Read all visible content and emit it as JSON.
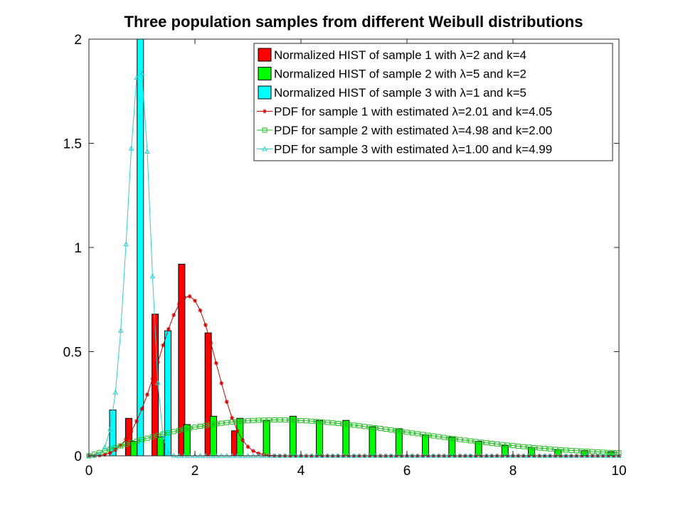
{
  "chart_data": {
    "type": "bar",
    "title": "Three population samples from different Weibull distributions",
    "xlabel": "",
    "ylabel": "",
    "xlim": [
      0,
      10
    ],
    "ylim": [
      0,
      2
    ],
    "xticks": [
      "0",
      "2",
      "4",
      "6",
      "8",
      "10"
    ],
    "yticks": [
      "0",
      "0.5",
      "1",
      "1.5",
      "2"
    ],
    "grid": false,
    "legend_position": "top-right",
    "histograms": [
      {
        "name": "Normalized HIST of sample 1 with λ=2 and k=4",
        "color": "#ff0000",
        "x": [
          0.75,
          1.25,
          1.75,
          2.25,
          2.75
        ],
        "values": [
          0.18,
          0.68,
          0.92,
          0.59,
          0.12
        ]
      },
      {
        "name": "Normalized HIST of sample 2 with λ=5 and k=2",
        "color": "#00ff00",
        "x": [
          0.85,
          1.35,
          1.85,
          2.35,
          2.85,
          3.35,
          3.85,
          4.35,
          4.85,
          5.35,
          5.85,
          6.35,
          6.85,
          7.35,
          7.85,
          8.35,
          8.85,
          9.35,
          9.85
        ],
        "values": [
          0.07,
          0.09,
          0.15,
          0.19,
          0.18,
          0.17,
          0.19,
          0.17,
          0.17,
          0.14,
          0.13,
          0.1,
          0.09,
          0.07,
          0.05,
          0.04,
          0.03,
          0.025,
          0.02
        ]
      },
      {
        "name": "Normalized HIST of sample 3 with λ=1 and k=5",
        "color": "#00ffff",
        "x": [
          0.45,
          0.97,
          1.49
        ],
        "values": [
          0.22,
          2.0,
          0.6
        ]
      }
    ],
    "pdfs": [
      {
        "name": "PDF for sample 1 with estimated λ=2.01 and k=4.05",
        "color": "#cc0000",
        "marker": "star",
        "lambda": 2.01,
        "k": 4.05
      },
      {
        "name": "PDF for sample 2 with estimated λ=4.98 and k=2.00",
        "color": "#22bb22",
        "marker": "square",
        "lambda": 4.98,
        "k": 2.0
      },
      {
        "name": "PDF for sample 3 with estimated λ=1.00 and k=4.99",
        "color": "#33cccc",
        "marker": "triangle",
        "lambda": 1.0,
        "k": 4.99
      }
    ]
  }
}
